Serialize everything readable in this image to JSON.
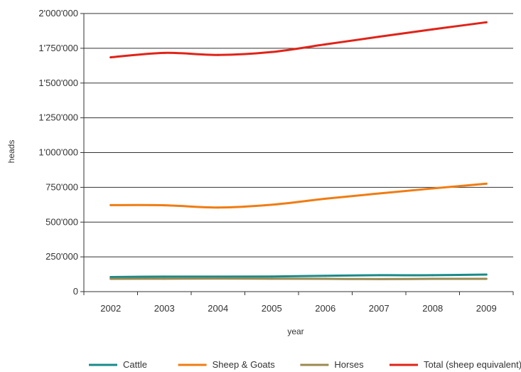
{
  "chart_data": {
    "type": "line",
    "xlabel": "year",
    "ylabel": "heads",
    "x": [
      2002,
      2003,
      2004,
      2005,
      2006,
      2007,
      2008,
      2009
    ],
    "x_tick_labels": [
      "2002",
      "2003",
      "2004",
      "2005",
      "2006",
      "2007",
      "2008",
      "2009"
    ],
    "ylim": [
      0,
      2000000
    ],
    "y_ticks": [
      0,
      250000,
      500000,
      750000,
      1000000,
      1250000,
      1500000,
      1750000,
      2000000
    ],
    "y_tick_labels": [
      "0",
      "250'000",
      "500'000",
      "750'000",
      "1'000'000",
      "1'250'000",
      "1'500'000",
      "1'750'000",
      "2'000'000"
    ],
    "grid": "horizontal",
    "legend_position": "bottom",
    "series": [
      {
        "name": "Cattle",
        "color": "#1a8a8a",
        "values": [
          105000,
          108000,
          108000,
          109000,
          114000,
          118000,
          118000,
          123000
        ]
      },
      {
        "name": "Sheep & Goats",
        "color": "#f07c12",
        "values": [
          622000,
          621000,
          605000,
          625000,
          668000,
          706000,
          742000,
          776000
        ]
      },
      {
        "name": "Horses",
        "color": "#9a8a52",
        "values": [
          92000,
          93000,
          94000,
          93000,
          92000,
          90000,
          92000,
          92000
        ]
      },
      {
        "name": "Total (sheep equivalent)",
        "color": "#e02318",
        "values": [
          1685000,
          1717000,
          1702000,
          1723000,
          1778000,
          1833000,
          1886000,
          1937000
        ]
      }
    ]
  }
}
